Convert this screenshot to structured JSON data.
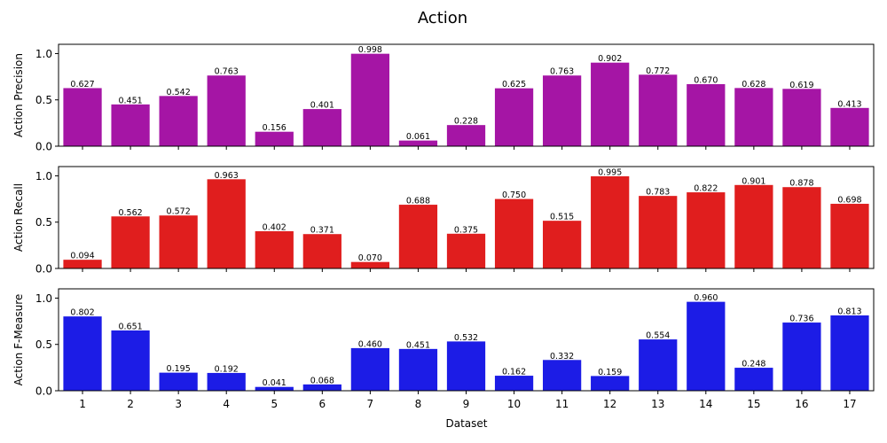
{
  "chart_data": {
    "type": "bar",
    "title": "Action",
    "xlabel": "Dataset",
    "categories": [
      "1",
      "2",
      "3",
      "4",
      "5",
      "6",
      "7",
      "8",
      "9",
      "10",
      "11",
      "12",
      "13",
      "14",
      "15",
      "16",
      "17"
    ],
    "yticks": [
      "0.0",
      "0.5",
      "1.0"
    ],
    "ylim": [
      0,
      1.1
    ],
    "grid": false,
    "panels": [
      {
        "ylabel": "Action Precision",
        "color": "#a515a5",
        "values": [
          0.627,
          0.451,
          0.542,
          0.763,
          0.156,
          0.401,
          0.998,
          0.061,
          0.228,
          0.625,
          0.763,
          0.902,
          0.772,
          0.67,
          0.628,
          0.619,
          0.413
        ],
        "labels": [
          "0.627",
          "0.451",
          "0.542",
          "0.763",
          "0.156",
          "0.401",
          "0.998",
          "0.061",
          "0.228",
          "0.625",
          "0.763",
          "0.902",
          "0.772",
          "0.670",
          "0.628",
          "0.619",
          "0.413"
        ]
      },
      {
        "ylabel": "Action Recall",
        "color": "#e01e1e",
        "values": [
          0.094,
          0.562,
          0.572,
          0.963,
          0.402,
          0.371,
          0.07,
          0.688,
          0.375,
          0.75,
          0.515,
          0.995,
          0.783,
          0.822,
          0.901,
          0.878,
          0.698
        ],
        "labels": [
          "0.094",
          "0.562",
          "0.572",
          "0.963",
          "0.402",
          "0.371",
          "0.070",
          "0.688",
          "0.375",
          "0.750",
          "0.515",
          "0.995",
          "0.783",
          "0.822",
          "0.901",
          "0.878",
          "0.698"
        ]
      },
      {
        "ylabel": "Action F-Measure",
        "color": "#1c1ce6",
        "values": [
          0.802,
          0.651,
          0.195,
          0.192,
          0.041,
          0.068,
          0.46,
          0.451,
          0.532,
          0.162,
          0.332,
          0.159,
          0.554,
          0.96,
          0.248,
          0.736,
          0.813
        ],
        "labels": [
          "0.802",
          "0.651",
          "0.195",
          "0.192",
          "0.041",
          "0.068",
          "0.460",
          "0.451",
          "0.532",
          "0.162",
          "0.332",
          "0.159",
          "0.554",
          "0.960",
          "0.248",
          "0.736",
          "0.813"
        ]
      }
    ]
  }
}
